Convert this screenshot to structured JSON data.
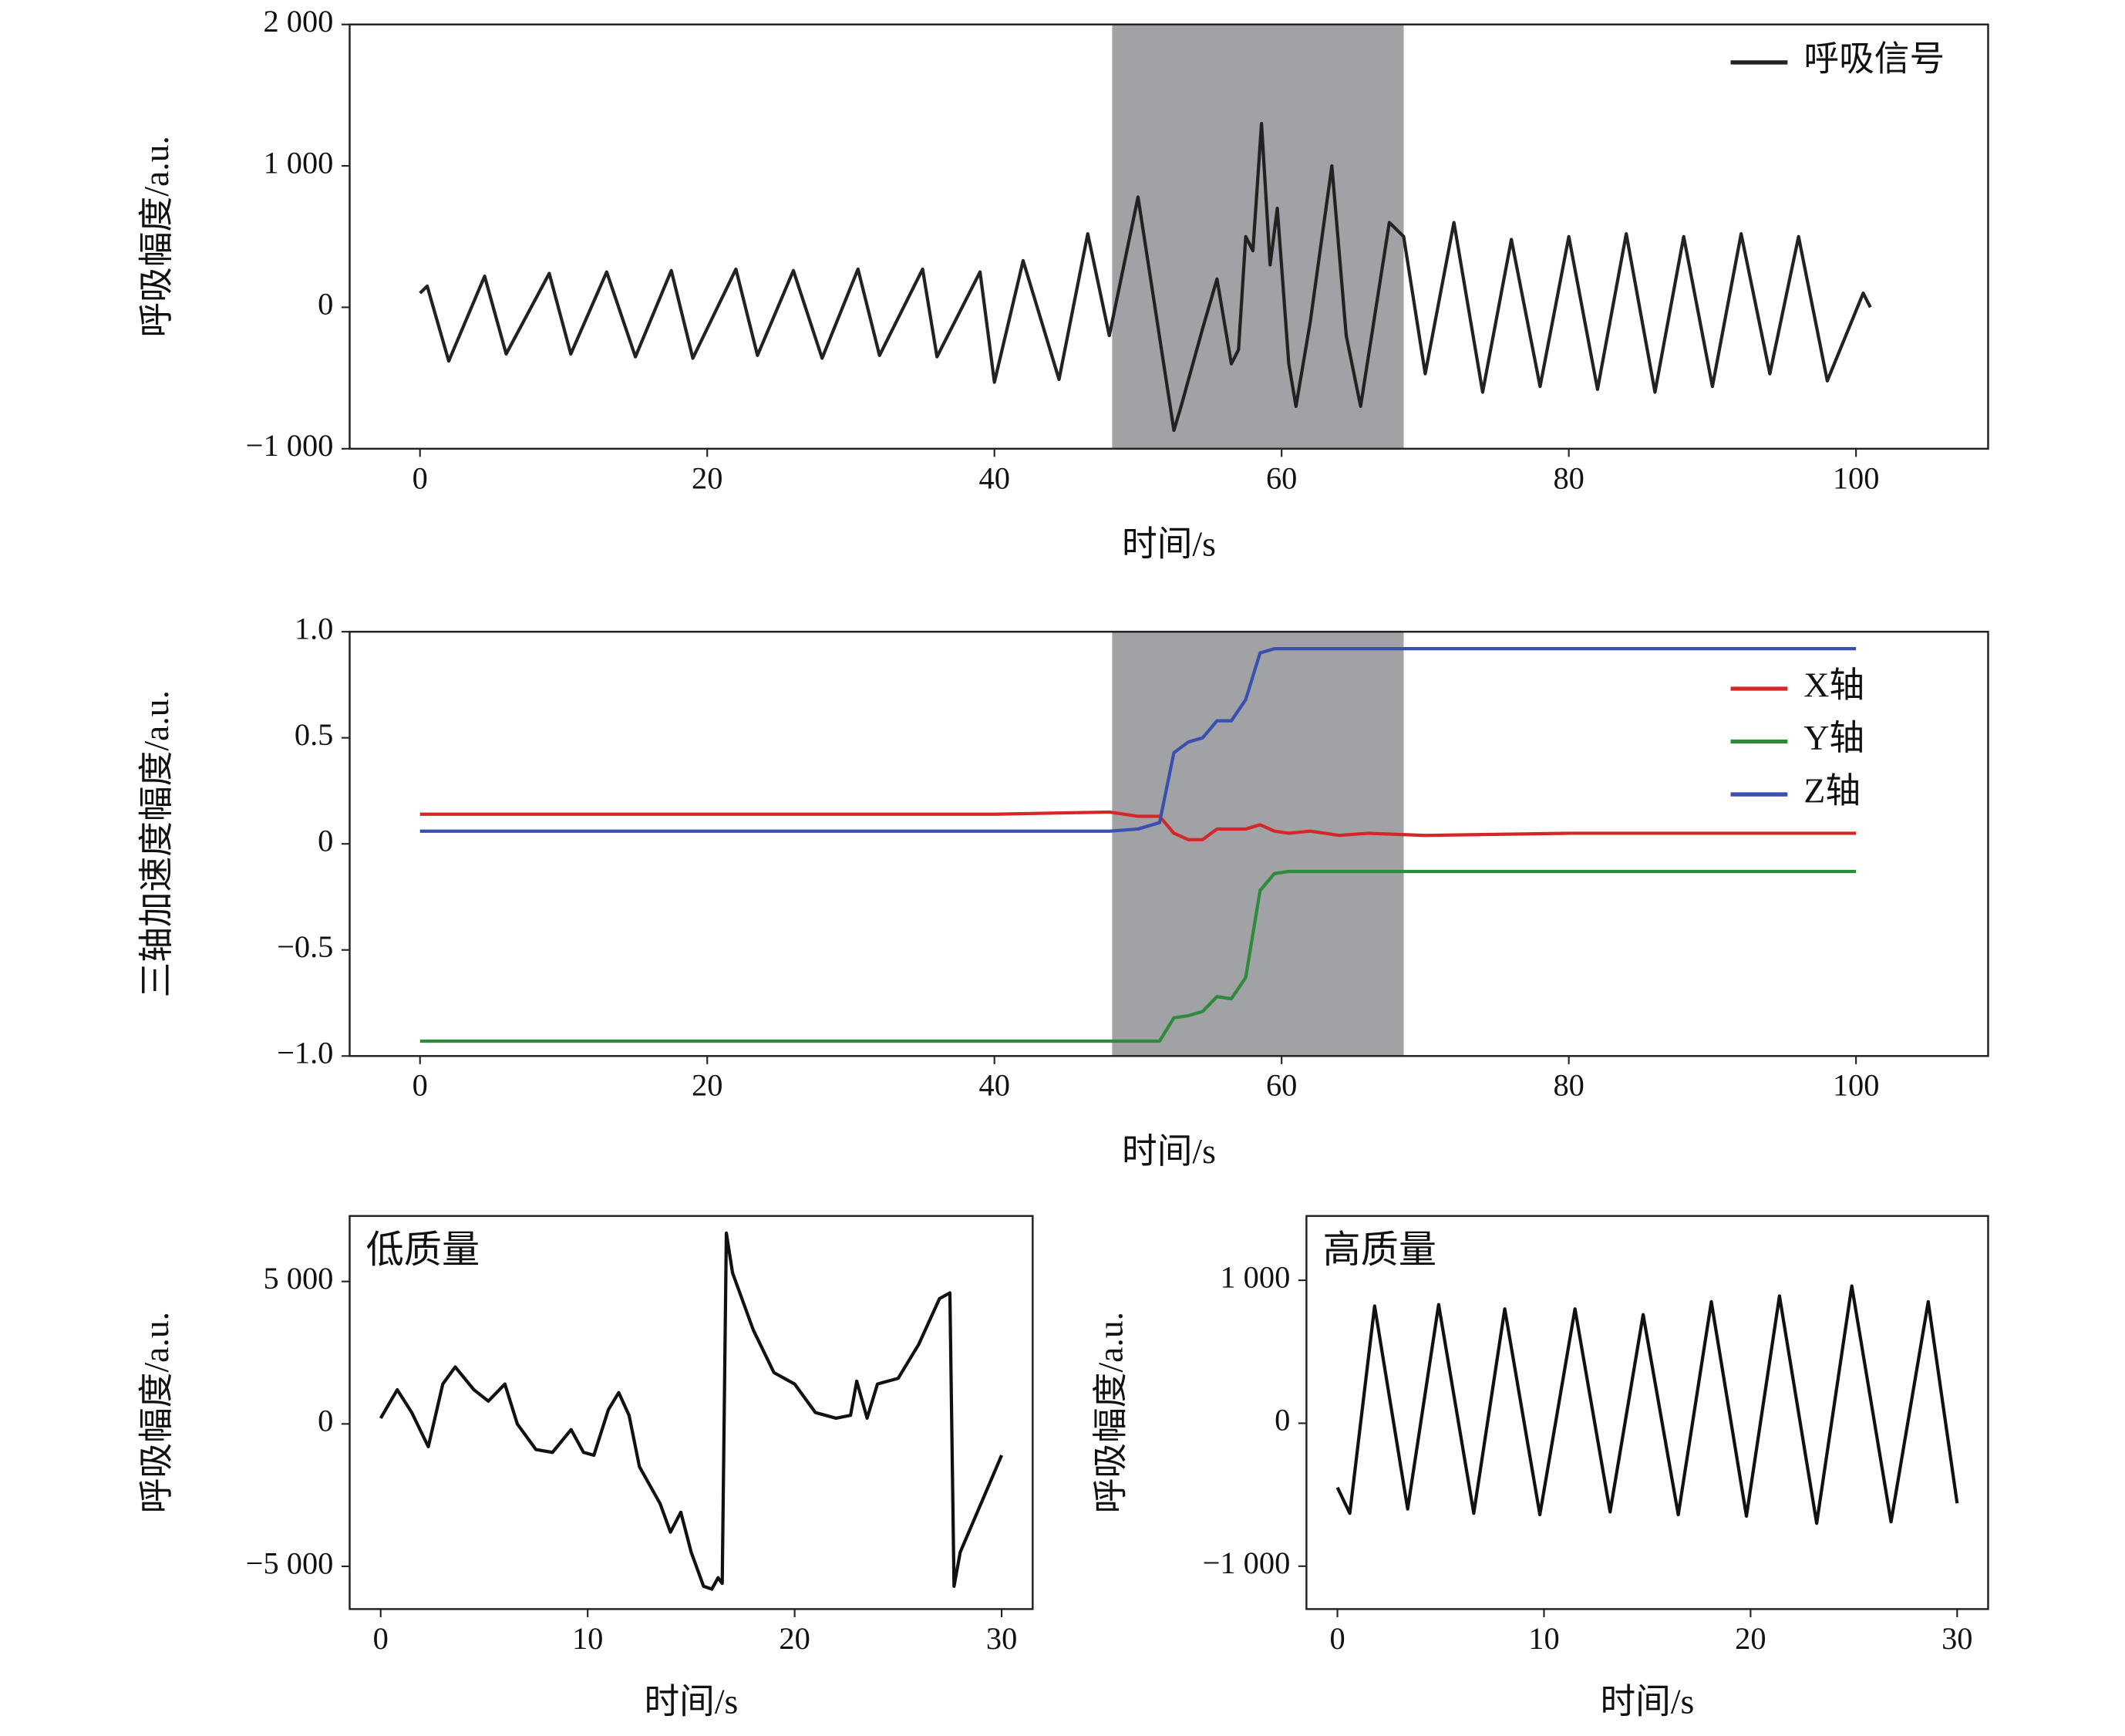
{
  "chart_data": [
    {
      "type": "line",
      "xlabel": "时间/s",
      "ylabel": "呼吸幅度/a.u.",
      "legend": "upper right",
      "xlim": [
        -4.9,
        109.2
      ],
      "ylim": [
        -1000,
        2000
      ],
      "xticks": [
        0,
        20,
        40,
        60,
        80,
        100
      ],
      "yticks": [
        {
          "value": -1000,
          "label": "−1 000"
        },
        0,
        {
          "value": 1000,
          "label": "1 000"
        },
        {
          "value": 2000,
          "label": "2 000"
        }
      ],
      "highlight": {
        "x": [
          48.2,
          68.5
        ],
        "color": "#a0a2a6"
      },
      "x": [
        0,
        0.5,
        2,
        4.5,
        6,
        9,
        10.5,
        13,
        15,
        17.5,
        19,
        22,
        23.5,
        26,
        28,
        30.5,
        32,
        35,
        36,
        39,
        40,
        42,
        44.5,
        46.5,
        48,
        50,
        52.5,
        53,
        54.5,
        55.5,
        56.5,
        57,
        57.5,
        58,
        58.6,
        59.2,
        59.7,
        60.5,
        61,
        62,
        63.5,
        64.5,
        65.5,
        67.5,
        68.5,
        70,
        72,
        74,
        76,
        78,
        80,
        82,
        84,
        86,
        88,
        90,
        92,
        94,
        96,
        98,
        100.5,
        101
      ],
      "series": [
        {
          "name": "呼吸信号",
          "color": "#222222",
          "values": [
            100,
            150,
            -380,
            220,
            -330,
            240,
            -330,
            250,
            -350,
            260,
            -360,
            270,
            -340,
            260,
            -360,
            270,
            -340,
            270,
            -350,
            250,
            -530,
            330,
            -510,
            520,
            -200,
            780,
            -870,
            -700,
            -150,
            200,
            -400,
            -300,
            500,
            400,
            1300,
            300,
            700,
            -400,
            -700,
            -100,
            1000,
            -200,
            -700,
            600,
            500,
            -470,
            600,
            -600,
            480,
            -560,
            500,
            -580,
            520,
            -600,
            500,
            -560,
            520,
            -470,
            500,
            -520,
            100,
            0
          ]
        }
      ]
    },
    {
      "type": "line",
      "xlabel": "时间/s",
      "ylabel": "三轴加速度幅度/a.u.",
      "legend": "right",
      "xlim": [
        -4.9,
        109.2
      ],
      "ylim": [
        -1,
        1
      ],
      "xticks": [
        0,
        20,
        40,
        60,
        80,
        100
      ],
      "yticks": [
        {
          "value": -1,
          "label": "−1.0"
        },
        {
          "value": -0.5,
          "label": "−0.5"
        },
        0,
        0.5,
        {
          "value": 1,
          "label": "1.0"
        }
      ],
      "highlight": {
        "x": [
          48.2,
          68.5
        ],
        "color": "#a0a2a6"
      },
      "x": [
        0,
        10,
        20,
        30,
        40,
        48,
        50,
        51.5,
        52.5,
        53.5,
        54.5,
        55.5,
        56.5,
        57.5,
        58.5,
        59.5,
        60.5,
        62,
        64,
        66,
        70,
        80,
        90,
        100
      ],
      "series": [
        {
          "name": "X轴",
          "color": "#d62728",
          "values": [
            0.14,
            0.14,
            0.14,
            0.14,
            0.14,
            0.15,
            0.13,
            0.13,
            0.05,
            0.02,
            0.02,
            0.07,
            0.07,
            0.07,
            0.09,
            0.06,
            0.05,
            0.06,
            0.04,
            0.05,
            0.04,
            0.05,
            0.05,
            0.05
          ]
        },
        {
          "name": "Y轴",
          "color": "#2e8b3a",
          "values": [
            -0.93,
            -0.93,
            -0.93,
            -0.93,
            -0.93,
            -0.93,
            -0.93,
            -0.93,
            -0.82,
            -0.81,
            -0.79,
            -0.72,
            -0.73,
            -0.63,
            -0.22,
            -0.14,
            -0.13,
            -0.13,
            -0.13,
            -0.13,
            -0.13,
            -0.13,
            -0.13,
            -0.13
          ]
        },
        {
          "name": "Z轴",
          "color": "#3a4fb0",
          "values": [
            0.06,
            0.06,
            0.06,
            0.06,
            0.06,
            0.06,
            0.07,
            0.1,
            0.43,
            0.48,
            0.5,
            0.58,
            0.58,
            0.68,
            0.9,
            0.92,
            0.92,
            0.92,
            0.92,
            0.92,
            0.92,
            0.92,
            0.92,
            0.92
          ]
        }
      ]
    },
    {
      "type": "line",
      "annotation": "低质量",
      "xlabel": "时间/s",
      "ylabel": "呼吸幅度/a.u.",
      "xlim": [
        -1.5,
        31.5
      ],
      "ylim": [
        -6500,
        7300
      ],
      "xticks": [
        0,
        10,
        20,
        30
      ],
      "yticks": [
        {
          "value": -5000,
          "label": "−5 000"
        },
        0,
        {
          "value": 5000,
          "label": "5 000"
        }
      ],
      "x": [
        0,
        0.8,
        1.5,
        2.3,
        3,
        3.6,
        4.5,
        5.2,
        6,
        6.6,
        7.5,
        8.3,
        9.2,
        9.8,
        10.3,
        11,
        11.5,
        12,
        12.5,
        13.5,
        14,
        14.5,
        15,
        15.6,
        16,
        16.3,
        16.5,
        16.7,
        17,
        18,
        19,
        20,
        21,
        22,
        22.7,
        23,
        23.5,
        24,
        25,
        26,
        27,
        27.5,
        27.7,
        28,
        30
      ],
      "series": [
        {
          "color": "#111111",
          "values": [
            200,
            1200,
            400,
            -800,
            1400,
            2000,
            1200,
            800,
            1400,
            0,
            -900,
            -1000,
            -200,
            -1000,
            -1100,
            500,
            1100,
            300,
            -1500,
            -2800,
            -3800,
            -3100,
            -4500,
            -5700,
            -5800,
            -5400,
            -5600,
            6700,
            5300,
            3300,
            1800,
            1400,
            400,
            200,
            300,
            1500,
            200,
            1400,
            1600,
            2800,
            4400,
            4600,
            -5700,
            -4500,
            -1100
          ]
        }
      ]
    },
    {
      "type": "line",
      "annotation": "高质量",
      "xlabel": "时间/s",
      "ylabel": "呼吸幅度/a.u.",
      "xlim": [
        -1.5,
        31.5
      ],
      "ylim": [
        -1300,
        1450
      ],
      "xticks": [
        0,
        10,
        20,
        30
      ],
      "yticks": [
        {
          "value": -1000,
          "label": "−1 000"
        },
        0,
        {
          "value": 1000,
          "label": "1 000"
        }
      ],
      "x": [
        0,
        0.6,
        1.8,
        3.4,
        4.9,
        6.6,
        8.1,
        9.8,
        11.5,
        13.2,
        14.8,
        16.5,
        18.1,
        19.8,
        21.4,
        23.2,
        24.9,
        26.8,
        28.6,
        30
      ],
      "series": [
        {
          "color": "#111111",
          "values": [
            -450,
            -630,
            820,
            -600,
            830,
            -630,
            800,
            -640,
            800,
            -620,
            760,
            -640,
            850,
            -650,
            890,
            -700,
            960,
            -690,
            850,
            -560
          ]
        }
      ]
    }
  ]
}
